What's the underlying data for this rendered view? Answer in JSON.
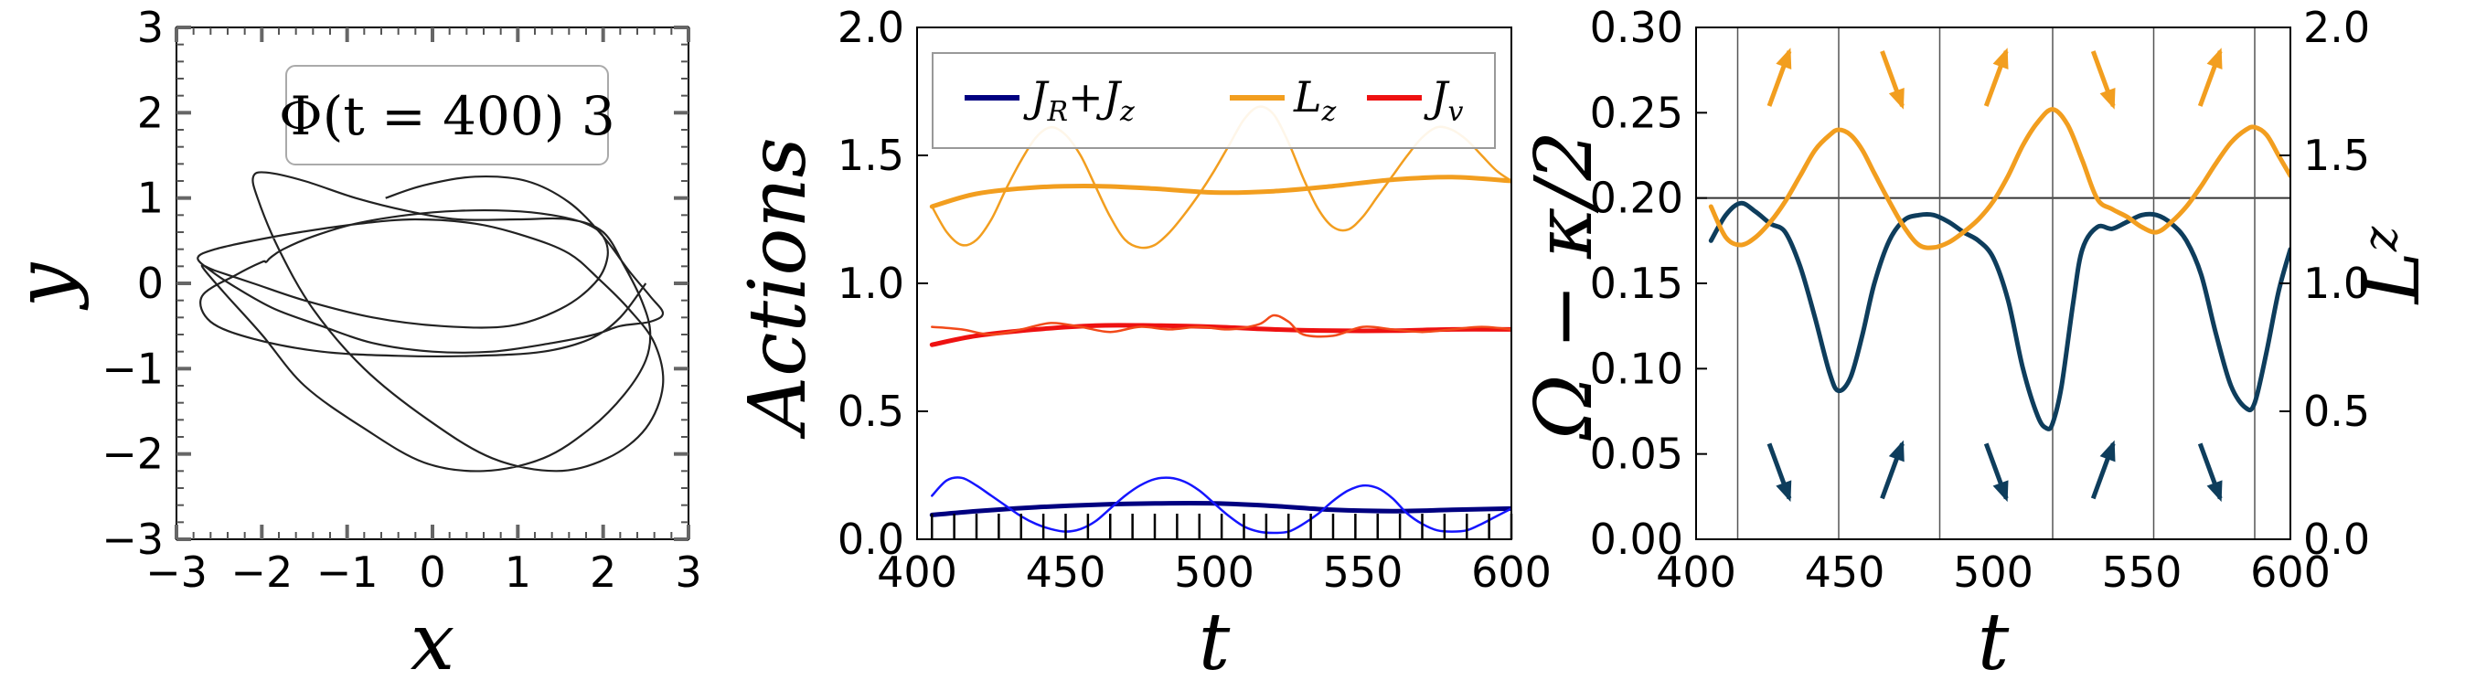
{
  "chart_data": [
    {
      "type": "line",
      "xlabel": "x",
      "ylabel": "y",
      "xlim": [
        -3,
        3
      ],
      "ylim": [
        -3,
        3
      ],
      "xticks": [
        "−3",
        "−2",
        "−1",
        "0",
        "1",
        "2",
        "3"
      ],
      "yticks": [
        "−3",
        "−2",
        "−1",
        "0",
        "1",
        "2",
        "3"
      ],
      "annotation": "Φ(t = 400) 3",
      "series": [
        {
          "color": "#222222",
          "x": [
            -0.55,
            -0.1,
            0.5,
            1.1,
            1.6,
            2.0,
            2.3,
            2.55,
            2.7,
            2.55,
            2.2,
            1.9,
            1.4,
            0.7,
            0.0,
            -0.7,
            -1.3,
            -1.85,
            -2.3,
            -2.6,
            -2.75,
            -2.55,
            -2.1,
            -1.55,
            -0.85,
            -0.2,
            0.5,
            1.1,
            1.6,
            1.95,
            2.3,
            2.6,
            2.7,
            2.5,
            2.05,
            1.45,
            0.7,
            -0.05,
            -0.8,
            -1.4,
            -1.8,
            -2.05,
            -2.1,
            -1.95,
            -1.5,
            -0.9,
            -0.3,
            0.3,
            1.0,
            1.6,
            2.0,
            2.25,
            2.45,
            2.55,
            2.5,
            2.25,
            1.85,
            1.3,
            0.6,
            -0.1,
            -0.8,
            -1.5,
            -2.0,
            -2.45,
            -2.7,
            -2.55,
            -2.1,
            -1.5,
            -0.7,
            0.1,
            0.9,
            1.5,
            1.9,
            2.05,
            2.0,
            1.8,
            1.4,
            0.9,
            0.3,
            -0.3,
            -0.9,
            -1.4,
            -1.75,
            -1.9,
            -1.95,
            -2.0,
            -2.3,
            -2.7,
            -2.6,
            -2.1,
            -1.3,
            -0.4,
            0.5,
            1.3,
            1.85,
            2.2,
            2.5
          ],
          "y": [
            1.0,
            1.15,
            1.25,
            1.2,
            0.95,
            0.55,
            0.15,
            -0.15,
            -0.35,
            -0.45,
            -0.5,
            -0.6,
            -0.7,
            -0.8,
            -0.8,
            -0.7,
            -0.5,
            -0.3,
            -0.05,
            0.15,
            0.3,
            0.4,
            0.5,
            0.6,
            0.7,
            0.75,
            0.7,
            0.55,
            0.35,
            0.05,
            -0.3,
            -0.7,
            -1.2,
            -1.7,
            -2.05,
            -2.2,
            -2.05,
            -1.6,
            -1.0,
            -0.3,
            0.4,
            1.0,
            1.25,
            1.3,
            1.2,
            1.0,
            0.85,
            0.75,
            0.75,
            0.75,
            0.6,
            0.2,
            -0.2,
            -0.55,
            -0.9,
            -1.3,
            -1.7,
            -2.05,
            -2.2,
            -2.1,
            -1.7,
            -1.2,
            -0.6,
            -0.1,
            0.2,
            0.15,
            0.0,
            -0.2,
            -0.4,
            -0.5,
            -0.5,
            -0.3,
            0.0,
            0.3,
            0.55,
            0.7,
            0.8,
            0.85,
            0.85,
            0.8,
            0.7,
            0.55,
            0.4,
            0.3,
            0.25,
            0.25,
            0.1,
            -0.15,
            -0.45,
            -0.65,
            -0.8,
            -0.85,
            -0.85,
            -0.8,
            -0.65,
            -0.4,
            0.0
          ]
        }
      ]
    },
    {
      "type": "line",
      "xlabel": "t",
      "ylabel": "Actions",
      "xlim": [
        400,
        600
      ],
      "ylim": [
        0,
        2
      ],
      "xticks": [
        "400",
        "450",
        "500",
        "550",
        "600"
      ],
      "yticks": [
        "0.0",
        "0.5",
        "1.0",
        "1.5",
        "2.0"
      ],
      "legend": "top",
      "legend_entries": [
        "J",
        "L",
        "J"
      ],
      "legend_subscripts": [
        "R",
        "z",
        "v"
      ],
      "legend_extra": {
        "plus": "+",
        "J": "J",
        "sub": "z"
      },
      "series": [
        {
          "color": "#000080",
          "width": 5,
          "x": [
            405,
            420,
            440,
            460,
            480,
            500,
            520,
            540,
            560,
            580,
            600
          ],
          "y": [
            0.095,
            0.11,
            0.125,
            0.135,
            0.14,
            0.14,
            0.13,
            0.115,
            0.11,
            0.115,
            0.12
          ]
        },
        {
          "color": "#1515ff",
          "width": 2.5,
          "x": [
            405,
            410,
            415,
            420,
            425,
            430,
            435,
            440,
            445,
            450,
            455,
            460,
            465,
            470,
            475,
            480,
            485,
            490,
            495,
            500,
            505,
            510,
            515,
            520,
            525,
            530,
            535,
            540,
            545,
            550,
            555,
            560,
            565,
            570,
            575,
            580,
            585,
            590,
            595,
            600
          ],
          "y": [
            0.17,
            0.23,
            0.24,
            0.21,
            0.17,
            0.13,
            0.09,
            0.06,
            0.04,
            0.03,
            0.04,
            0.07,
            0.12,
            0.17,
            0.21,
            0.235,
            0.24,
            0.225,
            0.19,
            0.14,
            0.09,
            0.05,
            0.03,
            0.025,
            0.03,
            0.06,
            0.1,
            0.15,
            0.19,
            0.21,
            0.2,
            0.16,
            0.1,
            0.06,
            0.035,
            0.03,
            0.035,
            0.06,
            0.09,
            0.12
          ]
        },
        {
          "color": "#f29e1f",
          "width": 5,
          "x": [
            405,
            420,
            440,
            460,
            480,
            500,
            520,
            540,
            560,
            580,
            600
          ],
          "y": [
            1.3,
            1.35,
            1.375,
            1.38,
            1.37,
            1.355,
            1.36,
            1.38,
            1.405,
            1.415,
            1.4
          ]
        },
        {
          "color": "#f29e1f",
          "width": 2.5,
          "x": [
            405,
            410,
            415,
            420,
            425,
            430,
            435,
            440,
            445,
            450,
            455,
            460,
            465,
            470,
            475,
            480,
            485,
            490,
            495,
            500,
            505,
            510,
            515,
            520,
            525,
            530,
            535,
            540,
            545,
            550,
            555,
            560,
            565,
            570,
            575,
            580,
            585,
            590,
            595,
            600
          ],
          "y": [
            1.3,
            1.2,
            1.15,
            1.17,
            1.25,
            1.37,
            1.48,
            1.57,
            1.61,
            1.58,
            1.5,
            1.38,
            1.26,
            1.17,
            1.14,
            1.15,
            1.2,
            1.27,
            1.35,
            1.44,
            1.54,
            1.64,
            1.69,
            1.66,
            1.55,
            1.41,
            1.29,
            1.22,
            1.21,
            1.26,
            1.34,
            1.42,
            1.5,
            1.57,
            1.61,
            1.6,
            1.56,
            1.5,
            1.44,
            1.4
          ]
        },
        {
          "color": "#ee1111",
          "width": 5,
          "x": [
            405,
            420,
            440,
            460,
            480,
            500,
            520,
            540,
            560,
            580,
            600
          ],
          "y": [
            0.76,
            0.795,
            0.82,
            0.835,
            0.835,
            0.83,
            0.82,
            0.815,
            0.815,
            0.82,
            0.82
          ]
        },
        {
          "color": "#f24a1a",
          "width": 2.5,
          "x": [
            405,
            415,
            425,
            435,
            445,
            455,
            465,
            475,
            485,
            495,
            505,
            515,
            520,
            525,
            530,
            540,
            550,
            560,
            570,
            580,
            590,
            600
          ],
          "y": [
            0.83,
            0.82,
            0.8,
            0.82,
            0.845,
            0.83,
            0.81,
            0.83,
            0.82,
            0.83,
            0.82,
            0.84,
            0.875,
            0.85,
            0.8,
            0.795,
            0.83,
            0.82,
            0.81,
            0.82,
            0.83,
            0.82
          ]
        }
      ]
    },
    {
      "type": "line",
      "xlabel": "t",
      "ylabel": "Ω − κ/2",
      "ylabel_right": "L",
      "ylabel_right_sub": "z",
      "xlim": [
        400,
        600
      ],
      "ylim": [
        0,
        0.3
      ],
      "ylim_right": [
        0,
        2
      ],
      "xticks": [
        "400",
        "450",
        "500",
        "550",
        "600"
      ],
      "yticks": [
        "0.00",
        "0.05",
        "0.10",
        "0.15",
        "0.20",
        "0.25",
        "0.30"
      ],
      "yticks_right": [
        "0.0",
        "0.5",
        "1.0",
        "1.5",
        "2.0"
      ],
      "hline": 0.2,
      "vlines": [
        414,
        448,
        482,
        520,
        554,
        588
      ],
      "series": [
        {
          "color": "#0e3d5c",
          "x": [
            405,
            410,
            415,
            420,
            425,
            430,
            435,
            440,
            445,
            448,
            452,
            456,
            460,
            465,
            470,
            475,
            480,
            485,
            490,
            495,
            500,
            505,
            510,
            515,
            518,
            520,
            523,
            527,
            530,
            535,
            540,
            545,
            550,
            555,
            560,
            565,
            570,
            575,
            580,
            585,
            588,
            592,
            596,
            600
          ],
          "y": [
            0.175,
            0.19,
            0.197,
            0.192,
            0.185,
            0.18,
            0.16,
            0.13,
            0.097,
            0.087,
            0.095,
            0.12,
            0.15,
            0.175,
            0.187,
            0.19,
            0.19,
            0.186,
            0.18,
            0.175,
            0.165,
            0.14,
            0.1,
            0.072,
            0.065,
            0.068,
            0.09,
            0.14,
            0.17,
            0.183,
            0.182,
            0.186,
            0.19,
            0.19,
            0.185,
            0.175,
            0.155,
            0.12,
            0.09,
            0.077,
            0.08,
            0.11,
            0.145,
            0.17
          ]
        },
        {
          "color": "#f29e1f",
          "axis": "right",
          "x": [
            405,
            410,
            415,
            420,
            425,
            430,
            435,
            440,
            445,
            448,
            452,
            456,
            460,
            465,
            470,
            475,
            480,
            485,
            490,
            495,
            500,
            505,
            510,
            515,
            520,
            525,
            530,
            535,
            540,
            545,
            550,
            555,
            560,
            565,
            570,
            575,
            580,
            585,
            588,
            592,
            596,
            600
          ],
          "y": [
            1.3,
            1.18,
            1.15,
            1.18,
            1.24,
            1.32,
            1.42,
            1.52,
            1.58,
            1.6,
            1.58,
            1.52,
            1.43,
            1.32,
            1.22,
            1.15,
            1.14,
            1.16,
            1.2,
            1.25,
            1.32,
            1.42,
            1.54,
            1.63,
            1.68,
            1.62,
            1.48,
            1.33,
            1.29,
            1.26,
            1.22,
            1.2,
            1.24,
            1.3,
            1.38,
            1.47,
            1.55,
            1.6,
            1.61,
            1.58,
            1.5,
            1.42
          ]
        }
      ],
      "arrows": [
        {
          "t": 428,
          "y": 0.27,
          "dir": "up-right",
          "color": "#f29e1f"
        },
        {
          "t": 466,
          "y": 0.27,
          "dir": "down-right",
          "color": "#f29e1f"
        },
        {
          "t": 501,
          "y": 0.27,
          "dir": "up-right",
          "color": "#f29e1f"
        },
        {
          "t": 537,
          "y": 0.27,
          "dir": "down-right",
          "color": "#f29e1f"
        },
        {
          "t": 573,
          "y": 0.27,
          "dir": "up-right",
          "color": "#f29e1f"
        },
        {
          "t": 428,
          "y": 0.04,
          "dir": "down-right",
          "color": "#0e3d5c"
        },
        {
          "t": 466,
          "y": 0.04,
          "dir": "up-right",
          "color": "#0e3d5c"
        },
        {
          "t": 501,
          "y": 0.04,
          "dir": "down-right",
          "color": "#0e3d5c"
        },
        {
          "t": 537,
          "y": 0.04,
          "dir": "up-right",
          "color": "#0e3d5c"
        },
        {
          "t": 573,
          "y": 0.04,
          "dir": "down-right",
          "color": "#0e3d5c"
        }
      ]
    }
  ]
}
